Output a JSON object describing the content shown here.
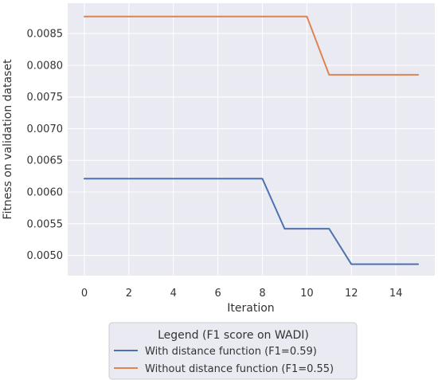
{
  "chart_data": {
    "type": "line",
    "title": "",
    "xlabel": "Iteration",
    "ylabel": "Fitness on validation dataset",
    "xlim": [
      -0.75,
      15.75
    ],
    "ylim": [
      0.00468,
      0.00898
    ],
    "xticks": [
      0,
      2,
      4,
      6,
      8,
      10,
      12,
      14
    ],
    "xtick_labels": [
      "0",
      "2",
      "4",
      "6",
      "8",
      "10",
      "12",
      "14"
    ],
    "yticks": [
      0.005,
      0.0055,
      0.006,
      0.0065,
      0.007,
      0.0075,
      0.008,
      0.0085
    ],
    "ytick_labels": [
      "0.0050",
      "0.0055",
      "0.0060",
      "0.0065",
      "0.0070",
      "0.0075",
      "0.0080",
      "0.0085"
    ],
    "grid": true,
    "legend": {
      "title": "Legend (F1 score on WADI)",
      "placement": "below"
    },
    "x": [
      0,
      1,
      2,
      3,
      4,
      5,
      6,
      7,
      8,
      9,
      10,
      11,
      12,
      13,
      14,
      15
    ],
    "series": [
      {
        "name": "With distance function (F1=0.59)",
        "color": "#4c72b0",
        "values": [
          0.00621,
          0.00621,
          0.00621,
          0.00621,
          0.00621,
          0.00621,
          0.00621,
          0.00621,
          0.00621,
          0.00542,
          0.00542,
          0.00542,
          0.00486,
          0.00486,
          0.00486,
          0.00486
        ]
      },
      {
        "name": "Without distance function (F1=0.55)",
        "color": "#dd8452",
        "values": [
          0.00877,
          0.00877,
          0.00877,
          0.00877,
          0.00877,
          0.00877,
          0.00877,
          0.00877,
          0.00877,
          0.00877,
          0.00877,
          0.00785,
          0.00785,
          0.00785,
          0.00785,
          0.00785
        ]
      }
    ]
  }
}
